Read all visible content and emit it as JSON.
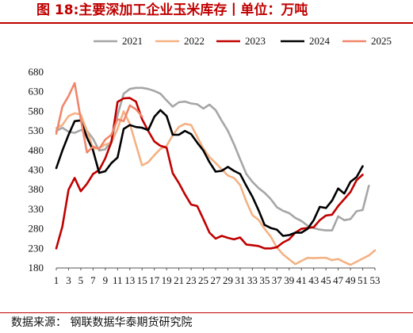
{
  "title": "图 18:主要深加工企业玉米库存丨单位：万吨",
  "source": "数据来源：  钢联数据华泰期货研究院",
  "chart_data": {
    "type": "line",
    "xlabel": "",
    "ylabel": "",
    "xlim": [
      1,
      53
    ],
    "ylim": [
      180,
      680
    ],
    "x_ticks": [
      1,
      3,
      5,
      7,
      9,
      11,
      13,
      15,
      17,
      19,
      21,
      23,
      25,
      27,
      29,
      31,
      33,
      35,
      37,
      39,
      41,
      43,
      45,
      47,
      49,
      51,
      53
    ],
    "y_ticks": [
      180,
      230,
      280,
      330,
      380,
      430,
      480,
      530,
      580,
      630,
      680
    ],
    "grid": false,
    "legend_position": "top",
    "series": [
      {
        "name": "2021",
        "color": "#a6a6a6",
        "x": [
          1,
          2,
          3,
          4,
          5,
          6,
          7,
          8,
          9,
          10,
          11,
          12,
          13,
          14,
          15,
          16,
          17,
          18,
          19,
          20,
          21,
          22,
          23,
          24,
          25,
          26,
          27,
          28,
          29,
          30,
          31,
          32,
          33,
          34,
          35,
          36,
          37,
          38,
          39,
          40,
          41,
          42,
          43,
          44,
          45,
          46,
          47,
          48,
          49,
          50,
          51,
          52
        ],
        "y": [
          530,
          538,
          528,
          525,
          532,
          530,
          510,
          480,
          483,
          505,
          570,
          625,
          637,
          640,
          640,
          637,
          632,
          625,
          608,
          592,
          603,
          605,
          600,
          598,
          587,
          597,
          583,
          556,
          530,
          496,
          458,
          420,
          400,
          384,
          372,
          356,
          335,
          326,
          320,
          308,
          300,
          288,
          282,
          278,
          276,
          276,
          312,
          302,
          305,
          325,
          328,
          390
        ]
      },
      {
        "name": "2022",
        "color": "#f4b183",
        "x": [
          1,
          2,
          3,
          4,
          5,
          6,
          7,
          8,
          9,
          10,
          11,
          12,
          13,
          14,
          15,
          16,
          17,
          18,
          19,
          20,
          21,
          22,
          23,
          24,
          25,
          26,
          27,
          28,
          29,
          30,
          31,
          32,
          33,
          34,
          35,
          36,
          37,
          38,
          39,
          40,
          41,
          42,
          43,
          44,
          45,
          46,
          47,
          48,
          49,
          50,
          51,
          52,
          53
        ],
        "y": [
          537,
          545,
          568,
          575,
          572,
          530,
          485,
          486,
          495,
          500,
          535,
          580,
          548,
          495,
          442,
          450,
          468,
          484,
          492,
          519,
          540,
          548,
          545,
          515,
          485,
          463,
          448,
          432,
          416,
          410,
          392,
          350,
          315,
          303,
          280,
          260,
          232,
          215,
          202,
          190,
          198,
          206,
          205,
          206,
          206,
          200,
          203,
          195,
          188,
          196,
          204,
          212,
          225
        ]
      },
      {
        "name": "2023",
        "color": "#c00000",
        "x": [
          1,
          2,
          3,
          4,
          5,
          6,
          7,
          8,
          9,
          10,
          11,
          12,
          13,
          14,
          15,
          16,
          17,
          18,
          19,
          20,
          21,
          22,
          23,
          24,
          25,
          26,
          27,
          28,
          29,
          30,
          31,
          32,
          33,
          34,
          35,
          36,
          37,
          38,
          39,
          40,
          41,
          42,
          43,
          44,
          45,
          46,
          47,
          48,
          49,
          50,
          51
        ],
        "y": [
          230,
          286,
          380,
          410,
          376,
          395,
          420,
          430,
          460,
          502,
          604,
          613,
          614,
          605,
          560,
          530,
          503,
          492,
          487,
          422,
          397,
          368,
          342,
          338,
          305,
          270,
          255,
          262,
          257,
          253,
          258,
          240,
          238,
          236,
          230,
          230,
          233,
          245,
          253,
          270,
          280,
          282,
          284,
          302,
          314,
          316,
          338,
          356,
          374,
          404,
          418
        ]
      },
      {
        "name": "2024",
        "color": "#000000",
        "x": [
          1,
          2,
          3,
          4,
          5,
          6,
          7,
          8,
          9,
          10,
          11,
          12,
          13,
          14,
          15,
          16,
          17,
          18,
          19,
          20,
          21,
          22,
          23,
          24,
          25,
          26,
          27,
          28,
          29,
          30,
          31,
          32,
          33,
          34,
          35,
          36,
          37,
          38,
          39,
          40,
          41,
          42,
          43,
          44,
          45,
          46,
          47,
          48,
          49,
          50,
          51
        ],
        "y": [
          435,
          480,
          520,
          555,
          557,
          513,
          480,
          423,
          427,
          448,
          462,
          535,
          545,
          540,
          538,
          532,
          566,
          583,
          568,
          520,
          520,
          530,
          522,
          500,
          480,
          450,
          426,
          428,
          438,
          428,
          420,
          390,
          362,
          328,
          290,
          282,
          278,
          262,
          264,
          270,
          270,
          280,
          302,
          336,
          333,
          352,
          383,
          370,
          400,
          412,
          440
        ]
      },
      {
        "name": "2025",
        "color": "#f0866a",
        "x": [
          1,
          2,
          3,
          4,
          5,
          6,
          7,
          8,
          9,
          10,
          11,
          12,
          13,
          14,
          15
        ],
        "y": [
          523,
          592,
          619,
          652,
          560,
          475,
          490,
          484,
          508,
          520,
          560,
          555,
          595,
          585,
          567
        ]
      }
    ]
  }
}
